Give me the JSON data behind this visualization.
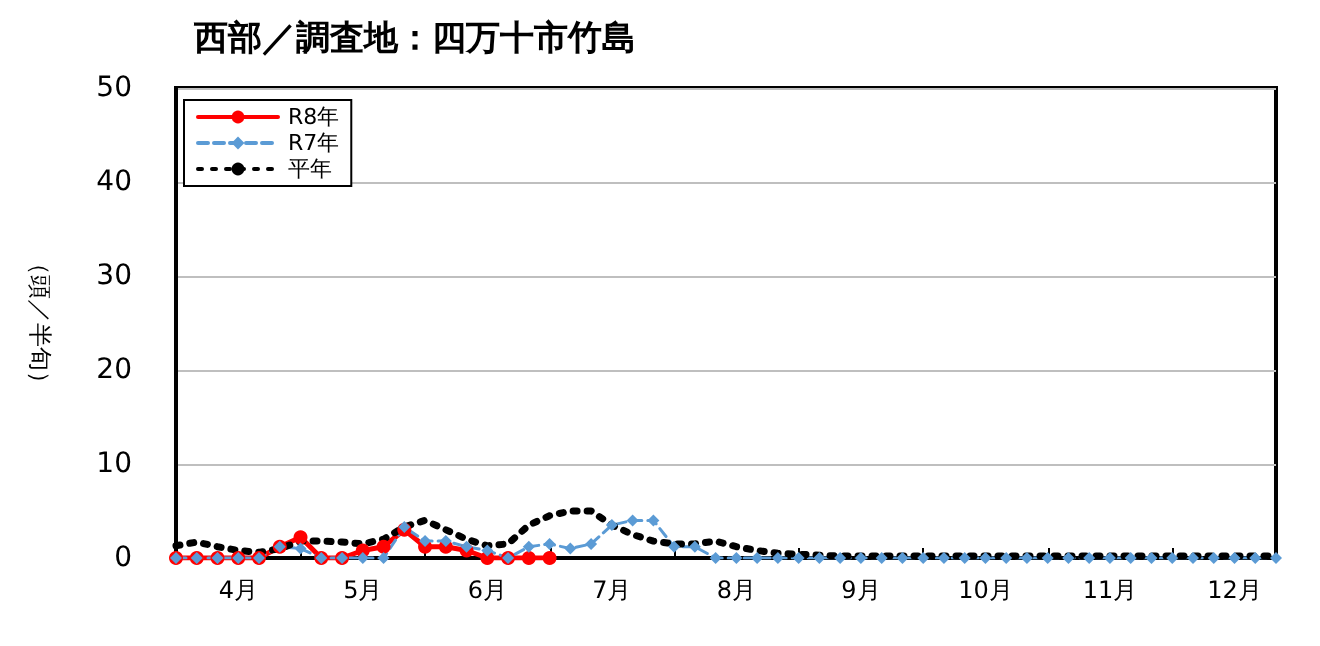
{
  "chart_data": {
    "type": "line",
    "title": "西部／調査地：四万十市竹島",
    "ylabel": "（頭／半旬）",
    "categories": [
      null,
      null,
      null,
      "4月",
      null,
      null,
      null,
      null,
      null,
      "5月",
      null,
      null,
      null,
      null,
      null,
      "6月",
      null,
      null,
      null,
      null,
      null,
      "7月",
      null,
      null,
      null,
      null,
      null,
      "8月",
      null,
      null,
      null,
      null,
      null,
      "9月",
      null,
      null,
      null,
      null,
      null,
      "10月",
      null,
      null,
      null,
      null,
      null,
      "11月",
      null,
      null,
      null,
      null,
      null,
      "12月",
      null,
      null
    ],
    "series": [
      {
        "name": "R8年",
        "color": "#ff0000",
        "marker": "circle",
        "line_style": "solid",
        "values": [
          0,
          0,
          0,
          0,
          0,
          1.2,
          2.2,
          0,
          0,
          0.8,
          1.2,
          3,
          1.2,
          1.2,
          0.8,
          0,
          0,
          0,
          0,
          null,
          null,
          null,
          null,
          null,
          null,
          null,
          null,
          null,
          null,
          null,
          null,
          null,
          null,
          null,
          null,
          null,
          null,
          null,
          null,
          null,
          null,
          null,
          null,
          null,
          null,
          null,
          null,
          null,
          null,
          null,
          null,
          null,
          null,
          null
        ]
      },
      {
        "name": "R7年",
        "color": "#5b9bd5",
        "marker": "diamond",
        "line_style": "dashed",
        "values": [
          0,
          0,
          0,
          0,
          0,
          1.2,
          1,
          0,
          0,
          0,
          0,
          3.3,
          1.8,
          1.8,
          1.2,
          0.8,
          0,
          1.2,
          1.5,
          1,
          1.5,
          3.5,
          4,
          4,
          1.2,
          1.2,
          0,
          0,
          0,
          0,
          0,
          0,
          0,
          0,
          0,
          0,
          0,
          0,
          0,
          0,
          0,
          0,
          0,
          0,
          0,
          0,
          0,
          0,
          0,
          0,
          0,
          0,
          0,
          0
        ]
      },
      {
        "name": "平年",
        "color": "#000000",
        "marker": "none",
        "line_style": "dotted",
        "values": [
          1.3,
          1.7,
          1.2,
          0.8,
          0.6,
          1,
          1.8,
          1.8,
          1.7,
          1.5,
          2,
          3.3,
          4,
          3,
          2,
          1.3,
          1.5,
          3.5,
          4.5,
          5,
          5,
          3.5,
          2.5,
          1.8,
          1.5,
          1.5,
          1.8,
          1.2,
          0.8,
          0.5,
          0.4,
          0.3,
          0.2,
          0.2,
          0.2,
          0.2,
          0.2,
          0.2,
          0.2,
          0.2,
          0.2,
          0.2,
          0.2,
          0.2,
          0.2,
          0.2,
          0.2,
          0.2,
          0.2,
          0.2,
          0.2,
          0.2,
          0.2,
          0.2
        ]
      }
    ],
    "ylim": [
      0,
      50
    ],
    "yticks": [
      0,
      10,
      20,
      30,
      40,
      50
    ],
    "grid": "y",
    "legend": "top left"
  }
}
